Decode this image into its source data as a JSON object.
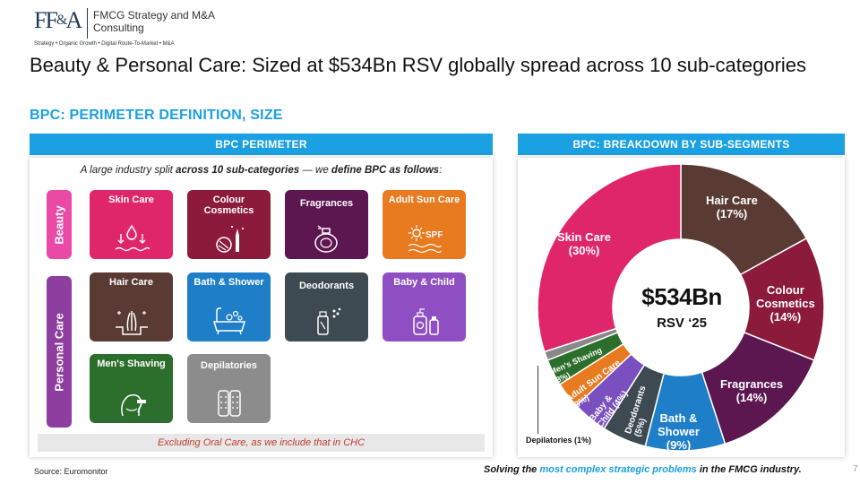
{
  "logo": {
    "mark_left": "FF",
    "mark_amp": "&",
    "mark_right": "A",
    "name": "FMCG Strategy and M&A Consulting",
    "tagline": "Strategy • Organic Growth • Digital Route-To-Market • M&A"
  },
  "title": "Beauty & Personal Care: Sized at $534Bn RSV globally spread across 10 sub-categories",
  "subtitle": "BPC: PERIMETER DEFINITION, SIZE",
  "left_panel": {
    "header": "BPC PERIMETER",
    "intro_pre": "A large industry split ",
    "intro_bold1": "across 10 sub-categories",
    "intro_mid": " — we ",
    "intro_bold2": "define BPC as follows",
    "intro_post": ":",
    "groups": {
      "beauty": "Beauty",
      "personal_care": "Personal Care"
    },
    "tiles": {
      "skin_care": "Skin Care",
      "colour_cosmetics": "Colour Cosmetics",
      "fragrances": "Fragrances",
      "adult_sun_care": "Adult Sun Care",
      "spf_text": "SPF",
      "hair_care": "Hair Care",
      "bath_shower": "Bath & Shower",
      "deodorants": "Deodorants",
      "baby_child": "Baby & Child",
      "mens_shaving": "Men's Shaving",
      "depilatories": "Depilatories"
    },
    "exclusion_note": "Excluding Oral Care, as we include that in CHC"
  },
  "right_panel": {
    "header": "BPC: BREAKDOWN BY SUB-SEGMENTS",
    "center_value": "$534Bn",
    "center_sub": "RSV ‘25",
    "labels": {
      "hair_care": "Hair Care",
      "hair_care_pct": "(17%)",
      "colour_cosmetics_1": "Colour",
      "colour_cosmetics_2": "Cosmetics",
      "colour_cosmetics_pct": "(14%)",
      "fragrances": "Fragrances",
      "fragrances_pct": "(14%)",
      "bath_shower_1": "Bath &",
      "bath_shower_2": "Shower",
      "bath_shower_pct": "(9%)",
      "deodorants": "Deodorants",
      "deodorants_pct": "(5%)",
      "baby_child_1": "Baby &",
      "baby_child_2": "Child (4%)",
      "adult_sun_care": "Adult Sun Care",
      "adult_sun_care_pct": "(3%)",
      "mens_shaving": "Men's Shaving",
      "mens_shaving_pct": "(3%)",
      "skin_care": "Skin Care",
      "skin_care_pct": "(30%)",
      "depilatories_callout": "Depilatories (1%)"
    }
  },
  "chart_data": {
    "type": "pie",
    "categories": [
      "Hair Care",
      "Colour Cosmetics",
      "Fragrances",
      "Bath & Shower",
      "Deodorants",
      "Baby & Child",
      "Adult Sun Care",
      "Men's Shaving",
      "Depilatories",
      "Skin Care"
    ],
    "values": [
      17,
      14,
      14,
      9,
      5,
      4,
      3,
      3,
      1,
      30
    ],
    "colors": [
      "#5a3b34",
      "#8b1a3b",
      "#5c1650",
      "#1e7fc8",
      "#3d4a52",
      "#7a4fc0",
      "#e87a1f",
      "#2c6e2c",
      "#888888",
      "#e0266a"
    ],
    "center_label": "$534Bn RSV ‘25"
  },
  "footer": {
    "source": "Source: Euromonitor",
    "tagline_pre": "Solving the ",
    "tagline_hl": "most complex strategic problems",
    "tagline_post": " in the FMCG industry.",
    "page_number": "7"
  }
}
